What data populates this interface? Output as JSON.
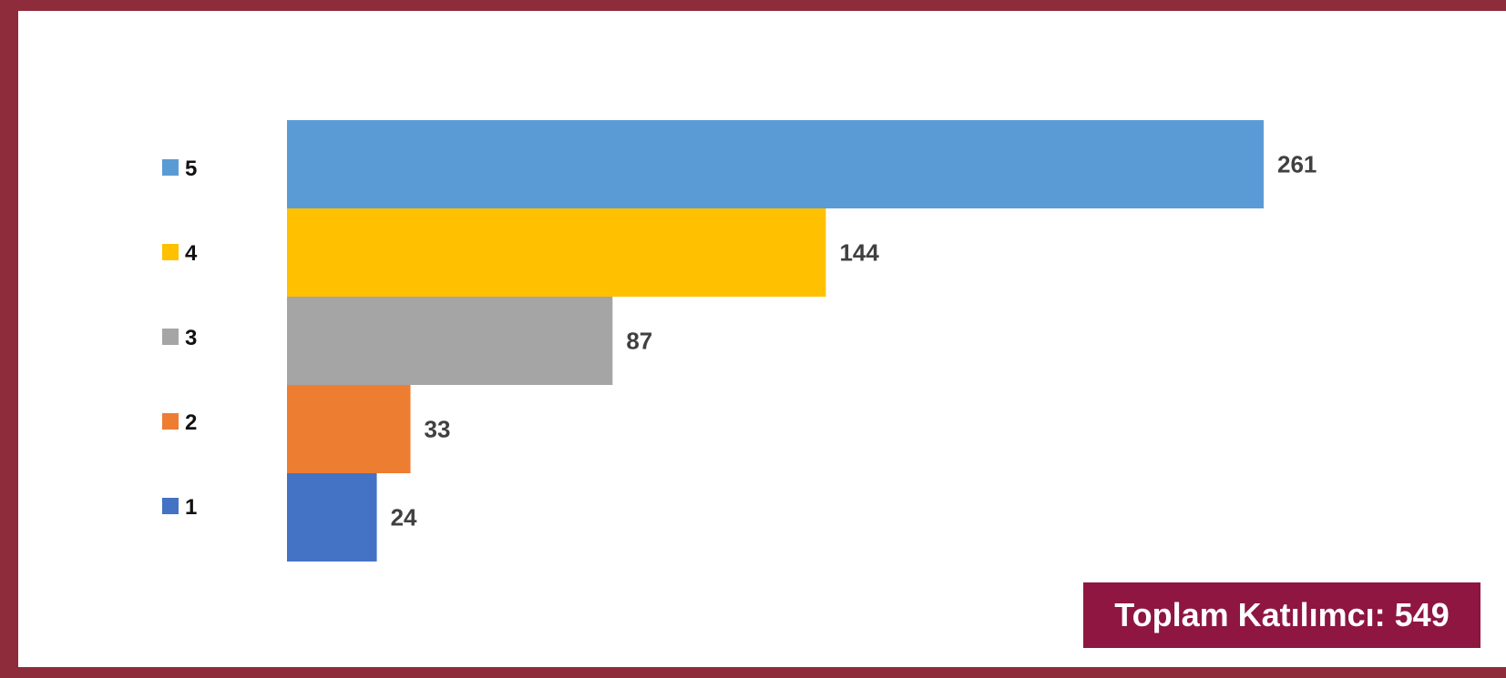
{
  "chart_data": {
    "type": "bar",
    "orientation": "horizontal",
    "categories": [
      "5",
      "4",
      "3",
      "2",
      "1"
    ],
    "values": [
      261,
      144,
      87,
      33,
      24
    ],
    "colors": [
      "#5b9bd5",
      "#ffc000",
      "#a5a5a5",
      "#ed7d31",
      "#4472c4"
    ],
    "xlim": [
      0,
      261
    ],
    "grid": false,
    "legend_position": "left",
    "title": "",
    "xlabel": "",
    "ylabel": ""
  },
  "total_badge": {
    "text": "Toplam Katılımcı: 549",
    "background": "#8e1640"
  },
  "frame_color": "#8e2c3c"
}
